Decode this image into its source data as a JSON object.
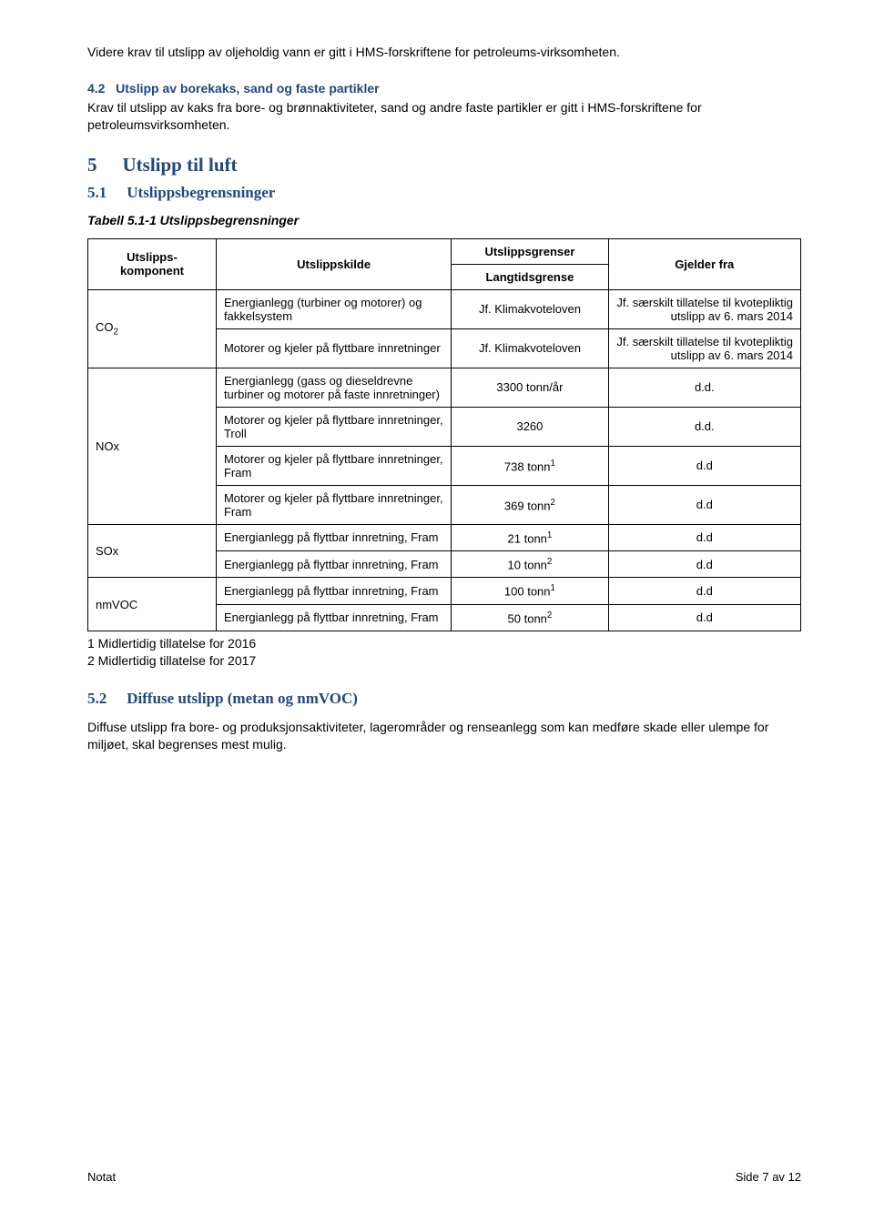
{
  "intro": {
    "para1": "Videre krav til utslipp av oljeholdig vann er gitt i HMS-forskriftene for petroleums-virksomheten."
  },
  "sec42": {
    "num": "4.2",
    "title": "Utslipp av borekaks, sand og faste partikler",
    "body": "Krav til utslipp av kaks fra bore- og brønnaktiviteter, sand og andre faste partikler er gitt i HMS-forskriftene for petroleumsvirksomheten."
  },
  "sec5": {
    "num": "5",
    "title": "Utslipp til luft"
  },
  "sec51": {
    "num": "5.1",
    "title": "Utslippsbegrensninger",
    "caption": "Tabell 5.1-1 Utslippsbegrensninger"
  },
  "table": {
    "headers": {
      "component": "Utslipps-komponent",
      "source": "Utslippskilde",
      "limits": "Utslippsgrenser",
      "longterm": "Langtidsgrense",
      "from": "Gjelder fra"
    },
    "rows": [
      {
        "component": "CO₂",
        "rowspan": 2
      },
      {
        "component": "NOx",
        "rowspan": 4
      },
      {
        "component": "SOx",
        "rowspan": 2
      },
      {
        "component": "nmVOC",
        "rowspan": 2
      }
    ],
    "data": [
      {
        "comp": "CO₂",
        "source": "Energianlegg (turbiner og motorer) og fakkelsystem",
        "limit": "Jf. Klimakvoteloven",
        "from": "Jf. særskilt tillatelse til kvotepliktig utslipp av 6. mars 2014"
      },
      {
        "comp": "",
        "source": "Motorer og kjeler på flyttbare innretninger",
        "limit": "Jf. Klimakvoteloven",
        "from": "Jf. særskilt tillatelse til kvotepliktig utslipp av 6. mars 2014"
      },
      {
        "comp": "NOx",
        "source": "Energianlegg (gass og dieseldrevne turbiner og motorer på faste innretninger)",
        "limit": "3300 tonn/år",
        "from": "d.d."
      },
      {
        "comp": "",
        "source": "Motorer og kjeler på flyttbare innretninger, Troll",
        "limit": "3260",
        "from": "d.d."
      },
      {
        "comp": "",
        "source": "Motorer og kjeler på flyttbare innretninger, Fram",
        "limit": "738 tonn¹",
        "from": "d.d"
      },
      {
        "comp": "",
        "source": "Motorer og kjeler på flyttbare innretninger, Fram",
        "limit": "369 tonn²",
        "from": "d.d"
      },
      {
        "comp": "SOx",
        "source": "Energianlegg på flyttbar innretning, Fram",
        "limit": "21 tonn¹",
        "from": "d.d"
      },
      {
        "comp": "",
        "source": "Energianlegg på flyttbar innretning, Fram",
        "limit": "10 tonn²",
        "from": "d.d"
      },
      {
        "comp": "nmVOC",
        "source": "Energianlegg på flyttbar innretning, Fram",
        "limit": "100 tonn¹",
        "from": "d.d"
      },
      {
        "comp": "",
        "source": "Energianlegg på flyttbar innretning, Fram",
        "limit": "50 tonn²",
        "from": "d.d"
      }
    ],
    "comp_labels": {
      "co2": "CO",
      "co2_sub": "2",
      "nox": "NOx",
      "sox": "SOx",
      "nmvoc": "nmVOC"
    },
    "notes": {
      "n1": "1 Midlertidig tillatelse for 2016",
      "n2": "2 Midlertidig tillatelse for 2017"
    }
  },
  "sec52": {
    "num": "5.2",
    "title": "Diffuse utslipp (metan og nmVOC)",
    "body": "Diffuse utslipp fra bore- og produksjonsaktiviteter, lagerområder og renseanlegg som kan medføre skade eller ulempe for miljøet, skal begrenses mest mulig."
  },
  "footer": {
    "left": "Notat",
    "right": "Side 7 av 12"
  },
  "colors": {
    "heading": "#1f497d",
    "text": "#000000",
    "background": "#ffffff"
  }
}
